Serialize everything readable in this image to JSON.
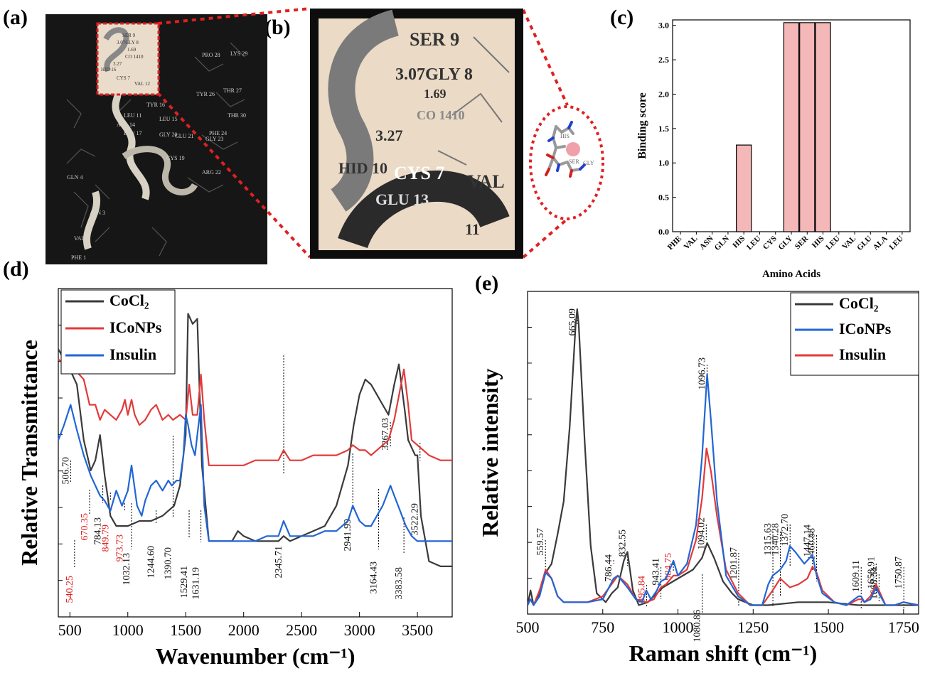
{
  "panels": {
    "a": "(a)",
    "b": "(b)",
    "c": "(c)",
    "d": "(d)",
    "e": "(e)"
  },
  "molecule": {
    "residues_a": [
      "SER 9",
      "3.07GLY 8",
      "1.69",
      "CO 1410",
      "3.27",
      "HID 16",
      "CYS 7",
      "VAL 12",
      "PRO 28",
      "LYS 29",
      "TYR 26",
      "THR 27",
      "PHE 24",
      "THR 30",
      "TYR 16",
      "LEU 11",
      "ALA 14",
      "LEU 15",
      "GLY 23",
      "LEU 17",
      "GLY 20",
      "GLU 21",
      "CYS 19",
      "ARG 22",
      "GLN 4",
      "ASN 3",
      "VAL 2",
      "PHE 1"
    ],
    "residues_b": [
      "SER 9",
      "3.07GLY 8",
      "1.69",
      "CO 1410",
      "3.27",
      "HID 10",
      "CYS 7",
      "VAL",
      "GLU 13",
      "11"
    ],
    "ligand": [
      "HIS",
      "SER",
      "GLY"
    ]
  },
  "chart_data": [
    {
      "id": "c",
      "type": "bar",
      "xlabel": "Amino Acids",
      "ylabel": "Binding score",
      "ylim": [
        0,
        3.0
      ],
      "yticks": [
        "0.0",
        "0.5",
        "1.0",
        "1.5",
        "2.0",
        "2.5",
        "3.0"
      ],
      "categories": [
        "PHE",
        "VAL",
        "ASN",
        "GLN",
        "HIS",
        "LEU",
        "CYS",
        "GLY",
        "SER",
        "HIS",
        "LEU",
        "VAL",
        "GLU",
        "ALA",
        "LEU"
      ],
      "values": [
        0,
        0,
        0,
        0,
        1.26,
        0,
        0,
        3.04,
        3.04,
        3.04,
        0,
        0,
        0,
        0,
        0
      ],
      "color": "#f4b8b8"
    },
    {
      "id": "d",
      "type": "line",
      "xlabel": "Wavenumber (cm⁻¹)",
      "ylabel": "Relative Transmittance",
      "xlim": [
        400,
        3800
      ],
      "xticks": [
        "500",
        "1000",
        "1500",
        "2000",
        "2500",
        "3000",
        "3500"
      ],
      "legend": "top-left",
      "series": [
        {
          "name": "CoCl₂",
          "color": "#3a3a3a",
          "x": [
            400,
            450,
            500,
            560,
            620,
            680,
            720,
            760,
            800,
            850,
            900,
            1000,
            1100,
            1200,
            1300,
            1400,
            1450,
            1500,
            1520,
            1560,
            1600,
            1640,
            1700,
            1800,
            1900,
            1950,
            2000,
            2100,
            2200,
            2300,
            2345,
            2400,
            2500,
            2600,
            2700,
            2800,
            2900,
            2950,
            3000,
            3050,
            3100,
            3150,
            3200,
            3250,
            3300,
            3340,
            3390,
            3420,
            3480,
            3500,
            3530,
            3600,
            3700,
            3800
          ],
          "y": [
            93,
            91,
            89,
            86,
            75,
            69,
            71,
            76,
            68,
            60,
            58,
            58,
            59,
            59,
            60,
            62,
            66,
            76,
            100,
            98,
            99,
            70,
            55,
            55,
            55,
            57,
            56,
            55,
            55,
            55,
            56,
            55,
            56,
            57,
            58,
            62,
            70,
            78,
            84,
            87,
            86,
            84,
            82,
            80,
            86,
            90,
            81,
            75,
            72,
            72,
            60,
            51,
            50,
            50
          ]
        },
        {
          "name": "ICoNPs",
          "color": "#e23a3a",
          "x": [
            400,
            450,
            500,
            540,
            580,
            620,
            670,
            720,
            760,
            800,
            850,
            900,
            950,
            975,
            1000,
            1032,
            1060,
            1100,
            1150,
            1200,
            1245,
            1300,
            1350,
            1390,
            1450,
            1500,
            1530,
            1560,
            1600,
            1631,
            1660,
            1700,
            1800,
            1900,
            2000,
            2100,
            2200,
            2300,
            2345,
            2400,
            2500,
            2600,
            2700,
            2800,
            2900,
            2942,
            3000,
            3050,
            3100,
            3150,
            3200,
            3250,
            3300,
            3350,
            3383,
            3420,
            3450,
            3500,
            3550,
            3600,
            3700,
            3800
          ],
          "y": [
            91,
            90,
            90,
            93,
            88,
            87,
            82,
            82,
            79,
            81,
            80,
            79,
            81,
            83,
            80,
            83,
            80,
            78,
            79,
            81,
            82,
            79,
            80,
            79,
            80,
            79,
            86,
            80,
            80,
            88,
            79,
            70,
            70,
            70,
            70,
            71,
            71,
            71,
            73,
            71,
            71,
            72,
            72,
            72,
            73,
            74,
            73,
            73,
            72,
            73,
            74,
            75,
            79,
            85,
            89,
            82,
            75,
            74,
            73,
            72,
            71,
            71
          ]
        },
        {
          "name": "Insulin",
          "color": "#2166d6",
          "x": [
            400,
            450,
            506,
            560,
            620,
            680,
            720,
            760,
            800,
            850,
            900,
            950,
            1000,
            1032,
            1080,
            1120,
            1150,
            1200,
            1245,
            1300,
            1350,
            1380,
            1420,
            1450,
            1480,
            1500,
            1520,
            1550,
            1580,
            1600,
            1631,
            1660,
            1700,
            1800,
            1900,
            2000,
            2100,
            2200,
            2300,
            2345,
            2400,
            2500,
            2600,
            2700,
            2800,
            2900,
            2942,
            3000,
            3050,
            3100,
            3150,
            3200,
            3267,
            3300,
            3350,
            3400,
            3450,
            3500,
            3600,
            3700,
            3800
          ],
          "y": [
            75,
            78,
            82,
            77,
            72,
            68,
            66,
            64,
            63,
            61,
            65,
            62,
            65,
            70,
            62,
            60,
            63,
            66,
            67,
            65,
            67,
            66,
            67,
            67,
            72,
            80,
            78,
            74,
            72,
            76,
            82,
            62,
            55,
            55,
            55,
            55,
            55,
            56,
            56,
            59,
            56,
            56,
            56,
            57,
            57,
            59,
            62,
            59,
            58,
            58,
            60,
            62,
            66,
            64,
            61,
            58,
            56,
            55,
            55,
            55,
            55
          ]
        }
      ],
      "annotations_black": [
        "506.70",
        "784.13",
        "1032.13",
        "1244.60",
        "1390.70",
        "1529.41",
        "1631.19",
        "2345.71",
        "2941.99",
        "3164.43",
        "3267.03",
        "3383.58",
        "3522.29"
      ],
      "annotations_red": [
        "540.25",
        "670.35",
        "849.79",
        "973.73"
      ]
    },
    {
      "id": "e",
      "type": "line",
      "xlabel": "Raman shift (cm⁻¹)",
      "ylabel": "Relative intensity",
      "xlim": [
        500,
        1800
      ],
      "xticks": [
        "500",
        "750",
        "1000",
        "1250",
        "1500",
        "1750"
      ],
      "legend": "top-right",
      "series": [
        {
          "name": "CoCl₂",
          "color": "#3a3a3a",
          "x": [
            500,
            510,
            520,
            540,
            560,
            580,
            600,
            620,
            640,
            660,
            665,
            670,
            690,
            710,
            730,
            760,
            780,
            800,
            820,
            832,
            850,
            870,
            900,
            950,
            1000,
            1050,
            1080,
            1097,
            1120,
            1150,
            1180,
            1200,
            1250,
            1300,
            1400,
            1500,
            1600,
            1700,
            1800
          ],
          "y": [
            0,
            5,
            0,
            4,
            11,
            14,
            24,
            35,
            60,
            95,
            100,
            95,
            55,
            20,
            4,
            1,
            4,
            6,
            15,
            18,
            5,
            0,
            1,
            6,
            9,
            12,
            16,
            21,
            16,
            8,
            4,
            2,
            0,
            0,
            1,
            1,
            0,
            0,
            0
          ]
        },
        {
          "name": "Insulin",
          "color": "#e23a3a",
          "x": [
            500,
            510,
            520,
            540,
            560,
            580,
            600,
            620,
            660,
            700,
            750,
            786,
            800,
            832,
            860,
            895,
            920,
            943,
            960,
            985,
            1000,
            1030,
            1060,
            1080,
            1095,
            1110,
            1130,
            1160,
            1200,
            1240,
            1280,
            1315,
            1340,
            1372,
            1400,
            1430,
            1447,
            1461,
            1480,
            1520,
            1560,
            1600,
            1609,
            1620,
            1640,
            1659,
            1668,
            1690,
            1720,
            1750,
            1800
          ],
          "y": [
            0,
            2,
            0,
            5,
            12,
            9,
            3,
            1,
            1,
            1,
            3,
            8,
            10,
            7,
            2,
            1,
            2,
            6,
            7,
            10,
            10,
            12,
            22,
            36,
            53,
            45,
            30,
            12,
            4,
            0,
            0,
            5,
            9,
            6,
            7,
            9,
            13,
            11,
            5,
            1,
            0,
            2,
            2,
            1,
            3,
            7,
            5,
            0,
            0,
            1,
            0
          ]
        },
        {
          "name": "ICoNPs",
          "color": "#2166d6",
          "x": [
            500,
            510,
            520,
            540,
            560,
            580,
            600,
            620,
            660,
            700,
            750,
            786,
            800,
            832,
            860,
            880,
            895,
            910,
            930,
            943,
            960,
            985,
            1000,
            1030,
            1060,
            1080,
            1097,
            1110,
            1130,
            1160,
            1200,
            1240,
            1280,
            1300,
            1315,
            1340,
            1360,
            1372,
            1390,
            1420,
            1447,
            1461,
            1480,
            1520,
            1560,
            1600,
            1609,
            1620,
            1640,
            1659,
            1668,
            1690,
            1720,
            1750,
            1800
          ],
          "y": [
            0,
            2,
            0,
            3,
            11,
            9,
            3,
            1,
            1,
            1,
            2,
            9,
            10,
            6,
            2,
            1,
            5,
            2,
            5,
            8,
            9,
            15,
            10,
            14,
            27,
            50,
            78,
            62,
            35,
            10,
            3,
            0,
            0,
            7,
            10,
            12,
            15,
            20,
            18,
            14,
            17,
            10,
            4,
            1,
            0,
            3,
            3,
            1,
            2,
            6,
            4,
            0,
            0,
            1,
            0
          ]
        }
      ],
      "annotations_black": [
        "559.57",
        "665.09",
        "786.44",
        "832.55",
        "943.41",
        "1096.73",
        "1094.02",
        "1080.86",
        "1201.87",
        "1315.63",
        "1340.28",
        "1372.70",
        "1447.14",
        "1460.88",
        "1609.11",
        "1658.91",
        "1668.54",
        "1750.87"
      ],
      "annotations_red": [
        "895.84",
        "984.75"
      ]
    }
  ]
}
